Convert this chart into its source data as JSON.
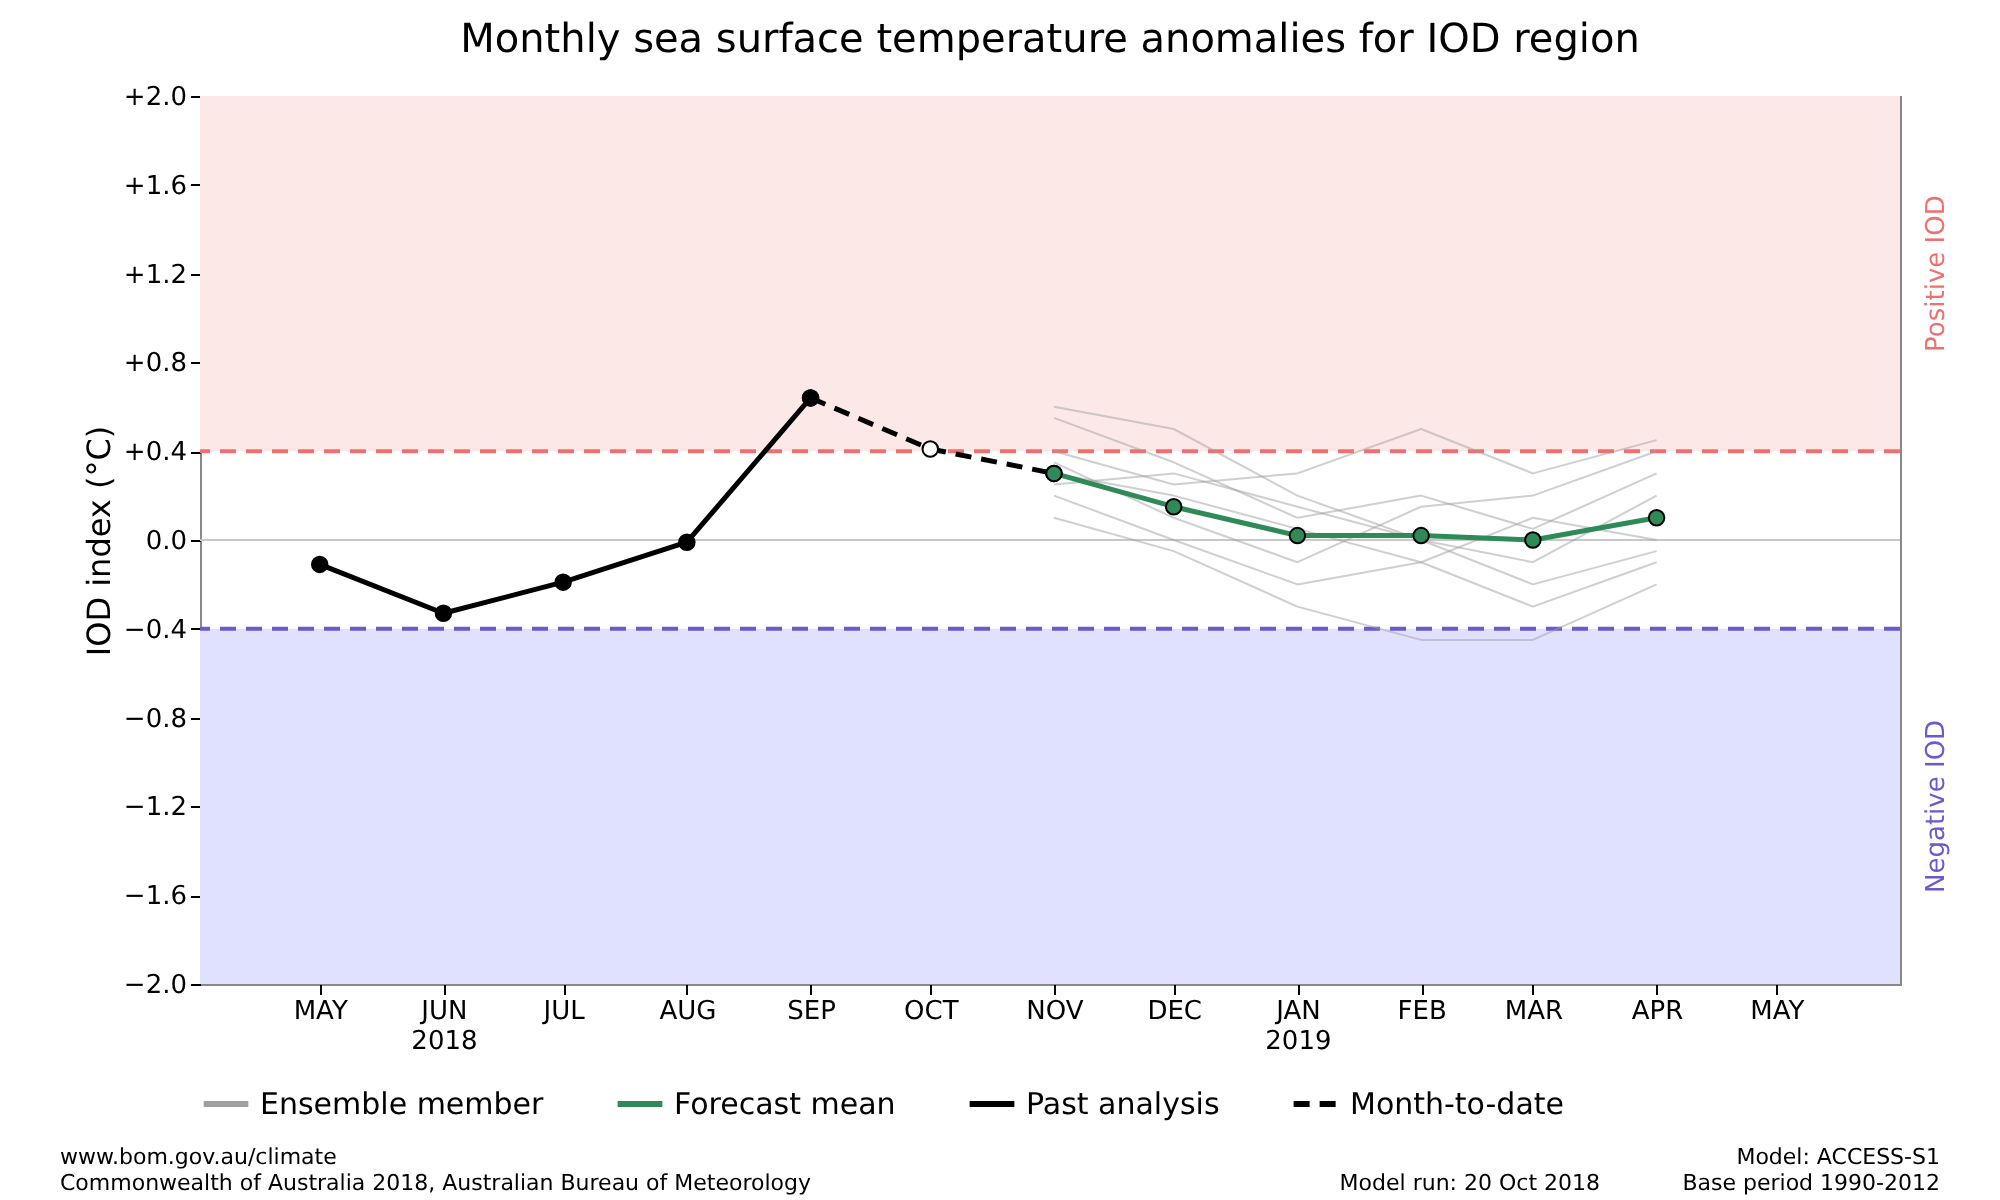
{
  "chart_data": {
    "type": "line",
    "title": "Monthly sea surface temperature anomalies for IOD region",
    "ylabel": "IOD index (°C)",
    "x": [
      "2018-05",
      "2018-06",
      "2018-07",
      "2018-08",
      "2018-09",
      "2018-10",
      "2018-11",
      "2018-12",
      "2019-01",
      "2019-02",
      "2019-03",
      "2019-04"
    ],
    "xlim": [
      "2018-04",
      "2019-06"
    ],
    "xticks": [
      {
        "value": "2018-05",
        "label": "MAY"
      },
      {
        "value": "2018-06",
        "label": "JUN\n2018"
      },
      {
        "value": "2018-07",
        "label": "JUL"
      },
      {
        "value": "2018-08",
        "label": "AUG"
      },
      {
        "value": "2018-09",
        "label": "SEP"
      },
      {
        "value": "2018-10",
        "label": "OCT"
      },
      {
        "value": "2018-11",
        "label": "NOV"
      },
      {
        "value": "2018-12",
        "label": "DEC"
      },
      {
        "value": "2019-01",
        "label": "JAN\n2019"
      },
      {
        "value": "2019-02",
        "label": "FEB"
      },
      {
        "value": "2019-03",
        "label": "MAR"
      },
      {
        "value": "2019-04",
        "label": "APR"
      },
      {
        "value": "2019-05",
        "label": "MAY"
      }
    ],
    "ylim": [
      -2.0,
      2.0
    ],
    "yticks": [
      {
        "value": 2.0,
        "label": "+2.0"
      },
      {
        "value": 1.6,
        "label": "+1.6"
      },
      {
        "value": 1.2,
        "label": "+1.2"
      },
      {
        "value": 0.8,
        "label": "+0.8"
      },
      {
        "value": 0.4,
        "label": "+0.4"
      },
      {
        "value": 0.0,
        "label": "0.0"
      },
      {
        "value": -0.4,
        "label": "−0.4"
      },
      {
        "value": -0.8,
        "label": "−0.8"
      },
      {
        "value": -1.2,
        "label": "−1.2"
      },
      {
        "value": -1.6,
        "label": "−1.6"
      },
      {
        "value": -2.0,
        "label": "−2.0"
      }
    ],
    "series": [
      {
        "name": "Ensemble member",
        "color": "#a0a0a0",
        "values": [
          null,
          null,
          null,
          null,
          null,
          null,
          0.55,
          0.35,
          0.1,
          0.2,
          0.05,
          0.3
        ]
      },
      {
        "color": "#a0a0a0",
        "values": [
          null,
          null,
          null,
          null,
          null,
          null,
          0.2,
          0.0,
          -0.2,
          -0.1,
          -0.3,
          -0.1
        ]
      },
      {
        "color": "#a0a0a0",
        "values": [
          null,
          null,
          null,
          null,
          null,
          null,
          0.4,
          0.25,
          0.3,
          0.5,
          0.3,
          0.45
        ]
      },
      {
        "color": "#a0a0a0",
        "values": [
          null,
          null,
          null,
          null,
          null,
          null,
          0.1,
          -0.05,
          -0.3,
          -0.45,
          -0.45,
          -0.2
        ]
      },
      {
        "color": "#a0a0a0",
        "values": [
          null,
          null,
          null,
          null,
          null,
          null,
          0.3,
          0.2,
          0.05,
          -0.1,
          0.1,
          0.0
        ]
      },
      {
        "color": "#a0a0a0",
        "values": [
          null,
          null,
          null,
          null,
          null,
          null,
          0.6,
          0.5,
          0.2,
          0.0,
          -0.1,
          0.2
        ]
      },
      {
        "color": "#a0a0a0",
        "values": [
          null,
          null,
          null,
          null,
          null,
          null,
          0.35,
          0.1,
          -0.1,
          0.15,
          0.2,
          0.4
        ]
      },
      {
        "color": "#a0a0a0",
        "values": [
          null,
          null,
          null,
          null,
          null,
          null,
          0.25,
          0.3,
          0.15,
          0.0,
          -0.2,
          -0.05
        ]
      },
      {
        "name": "Forecast mean",
        "color": "#2e8b57",
        "marker": "circle",
        "values": [
          null,
          null,
          null,
          null,
          null,
          null,
          0.3,
          0.15,
          0.02,
          0.02,
          0.0,
          0.1
        ]
      },
      {
        "name": "Past analysis",
        "color": "#000000",
        "marker": "circle",
        "values": [
          -0.11,
          -0.33,
          -0.19,
          -0.01,
          0.64,
          null,
          null,
          null,
          null,
          null,
          null,
          null
        ]
      },
      {
        "name": "Month-to-date",
        "color": "#000000",
        "marker": "circle",
        "line_style": "dashed",
        "values": [
          null,
          null,
          null,
          null,
          0.64,
          0.41,
          0.3,
          null,
          null,
          null,
          null,
          null
        ]
      }
    ],
    "bands": [
      {
        "axis": "y",
        "from": 0.4,
        "to": 2.0,
        "label": "Positive IOD",
        "color": "#fde8e8"
      },
      {
        "axis": "y",
        "from": -2.0,
        "to": -0.4,
        "label": "Negative IOD",
        "color": "#e0e0ff"
      }
    ],
    "ref_lines": [
      {
        "axis": "y",
        "value": 0.4,
        "color": "#f07070",
        "line_style": "dashed"
      },
      {
        "axis": "y",
        "value": -0.4,
        "color": "#6a5acd",
        "line_style": "dashed"
      },
      {
        "axis": "y",
        "value": 0.0,
        "color": "#c8c8c8",
        "line_style": "solid"
      }
    ],
    "grid": false,
    "legend": "bottom",
    "annotations": [
      "www.bom.gov.au/climate",
      "Commonwealth of Australia 2018, Australian Bureau of Meteorology",
      "Model run: 20 Oct 2018",
      "Model: ACCESS-S1",
      "Base period 1990-2012"
    ]
  }
}
